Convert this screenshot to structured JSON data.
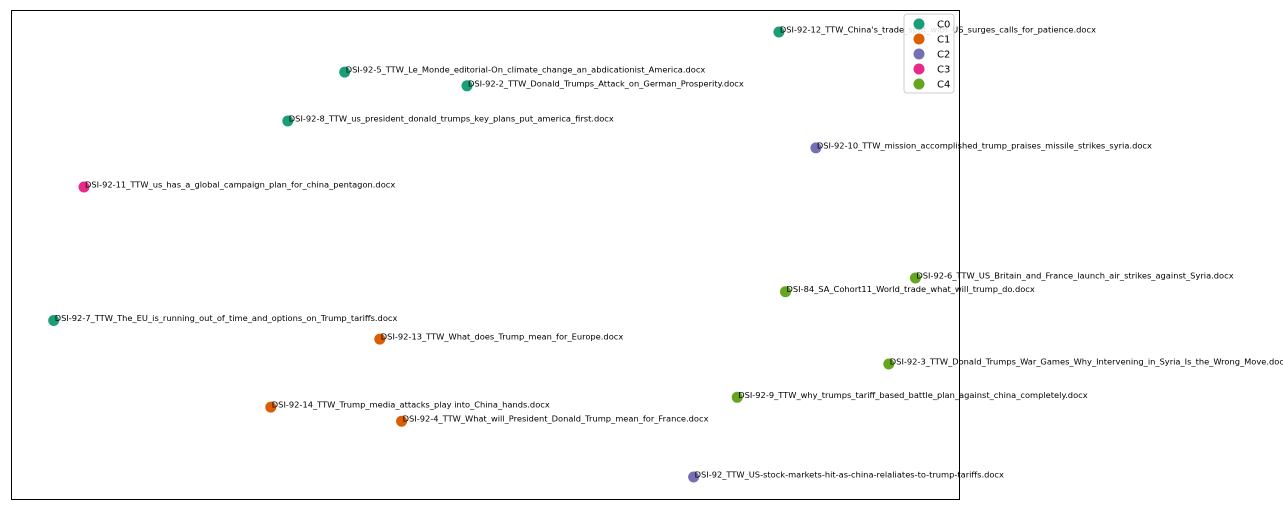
{
  "chart_data": {
    "type": "scatter",
    "title": "",
    "xlabel": "",
    "ylabel": "",
    "grid": false,
    "axes_ticks": false,
    "xlim": [
      0,
      100
    ],
    "ylim": [
      0,
      100
    ],
    "legend": {
      "position": "top-right",
      "entries": [
        {
          "name": "C0",
          "color": "#1b9e77"
        },
        {
          "name": "C1",
          "color": "#d95f02"
        },
        {
          "name": "C2",
          "color": "#7570b3"
        },
        {
          "name": "C3",
          "color": "#e7298a"
        },
        {
          "name": "C4",
          "color": "#66a61e"
        }
      ]
    },
    "points": [
      {
        "label": "DSI-92-12_TTW_China's_trade_spat_with_US_surges_calls_for_patience.docx",
        "cluster": "C0",
        "x": 81.0,
        "y": 95.5
      },
      {
        "label": "DSI-92-5_TTW_Le_Monde_editorial-On_climate_change_an_abdicationist_America.docx",
        "cluster": "C0",
        "x": 35.2,
        "y": 87.3
      },
      {
        "label": "DSI-92-2_TTW_Donald_Trumps_Attack_on_German_Prosperity.docx",
        "cluster": "C0",
        "x": 48.1,
        "y": 84.5
      },
      {
        "label": "DSI-92-8_TTW_us_president_donald_trumps_key_plans_put_america_first.docx",
        "cluster": "C0",
        "x": 29.2,
        "y": 77.3
      },
      {
        "label": "DSI-92-10_TTW_mission_accomplished_trump_praises_missile_strikes_syria.docx",
        "cluster": "C2",
        "x": 84.9,
        "y": 71.8
      },
      {
        "label": "DSI-92-11_TTW_us_has_a_global_campaign_plan_for_china_pentagon.docx",
        "cluster": "C3",
        "x": 7.7,
        "y": 63.8
      },
      {
        "label": "DSI-92-6_TTW_US_Britain_and_France_launch_air_strikes_against_Syria.docx",
        "cluster": "C4",
        "x": 95.4,
        "y": 45.2
      },
      {
        "label": "DSI-84_SA_Cohort11_World_trade_what_will_trump_do.docx",
        "cluster": "C4",
        "x": 81.7,
        "y": 42.4
      },
      {
        "label": "DSI-92-7_TTW_The_EU_is_running_out_of_time_and_options_on_Trump_tariffs.docx",
        "cluster": "C0",
        "x": 4.5,
        "y": 36.5
      },
      {
        "label": "DSI-92-13_TTW_What_does_Trump_mean_for_Europe.docx",
        "cluster": "C1",
        "x": 38.9,
        "y": 32.7
      },
      {
        "label": "DSI-92-3_TTW_Donald_Trumps_War_Games_Why_Intervening_in_Syria_Is_the_Wrong_Move.docx",
        "cluster": "C4",
        "x": 92.6,
        "y": 27.6
      },
      {
        "label": "DSI-92-9_TTW_why_trumps_tariff_based_battle_plan_against_china_completely.docx",
        "cluster": "C4",
        "x": 76.6,
        "y": 20.8
      },
      {
        "label": "DSI-92-14_TTW_Trump_media_attacks_play into_China_hands.docx",
        "cluster": "C1",
        "x": 27.4,
        "y": 18.8
      },
      {
        "label": "DSI-92-4_TTW_What_will_President_Donald_Trump_mean_for_France.docx",
        "cluster": "C1",
        "x": 41.2,
        "y": 15.9
      },
      {
        "label": "DSI-92_TTW_US-stock-markets-hit-as-china-relaliates-to-trump-tariffs.docx",
        "cluster": "C2",
        "x": 72.0,
        "y": 4.5
      }
    ]
  }
}
